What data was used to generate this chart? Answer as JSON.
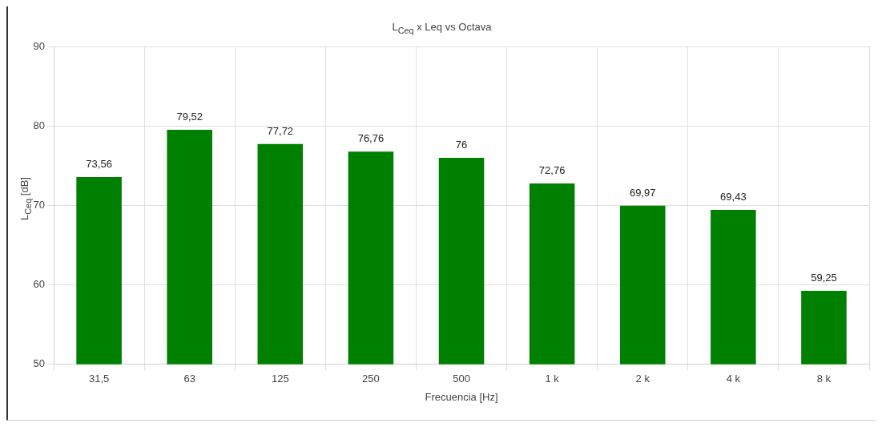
{
  "chart_data": {
    "type": "bar",
    "title": "L$_{Ceq}$ x Leq vs Octava",
    "xlabel": "Frecuencia [Hz]",
    "ylabel": "L$_{Ceq}$ [dB]",
    "categories": [
      "31,5",
      "63",
      "125",
      "250",
      "500",
      "1 k",
      "2 k",
      "4 k",
      "8 k"
    ],
    "series": [
      {
        "color": "#008000",
        "values": [
          73.56,
          79.52,
          77.72,
          76.76,
          76,
          72.76,
          69.97,
          69.43,
          59.25
        ],
        "value_labels": [
          "73,56",
          "79,52",
          "77,72",
          "76,76",
          "76",
          "72,76",
          "69,97",
          "69,43",
          "59,25"
        ]
      }
    ],
    "ylim": [
      50,
      90
    ],
    "yticks": [
      50,
      60,
      70,
      80,
      90
    ],
    "grid": true,
    "legend": false
  }
}
